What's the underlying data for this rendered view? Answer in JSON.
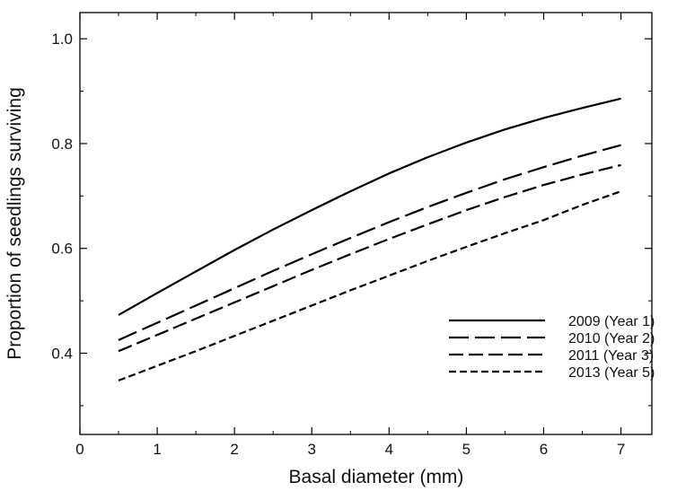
{
  "chart_data": {
    "type": "line",
    "title": "",
    "xlabel": "Basal diameter (mm)",
    "ylabel": "Proportion of seedlings surviving",
    "xlim": [
      0,
      7.4
    ],
    "ylim": [
      0.245,
      1.05
    ],
    "xticks": [
      0,
      1,
      2,
      3,
      4,
      5,
      6,
      7
    ],
    "yticks": [
      0.4,
      0.6,
      0.8,
      1.0
    ],
    "ytick_labels": [
      "0.4",
      "0.6",
      "0.8",
      "1.0"
    ],
    "grid": false,
    "legend_position": "bottom-right",
    "x": [
      0.5,
      1,
      1.5,
      2,
      2.5,
      3,
      3.5,
      4,
      4.5,
      5,
      5.5,
      6,
      6.5,
      7
    ],
    "series": [
      {
        "name": "2009 (Year 1)",
        "style": "solid",
        "values": [
          0.473,
          0.515,
          0.556,
          0.597,
          0.636,
          0.673,
          0.709,
          0.743,
          0.774,
          0.802,
          0.827,
          0.849,
          0.868,
          0.886
        ]
      },
      {
        "name": "2010 (Year 2)",
        "style": "long-dash",
        "values": [
          0.425,
          0.458,
          0.491,
          0.524,
          0.557,
          0.589,
          0.62,
          0.65,
          0.679,
          0.706,
          0.732,
          0.755,
          0.777,
          0.797
        ]
      },
      {
        "name": "2011 (Year 3)",
        "style": "dash",
        "values": [
          0.404,
          0.435,
          0.466,
          0.497,
          0.528,
          0.559,
          0.589,
          0.618,
          0.646,
          0.673,
          0.698,
          0.721,
          0.741,
          0.759
        ]
      },
      {
        "name": "2013 (Year 5)",
        "style": "short-dash",
        "values": [
          0.348,
          0.376,
          0.404,
          0.433,
          0.462,
          0.491,
          0.52,
          0.548,
          0.576,
          0.603,
          0.629,
          0.654,
          0.683,
          0.709
        ]
      }
    ]
  }
}
